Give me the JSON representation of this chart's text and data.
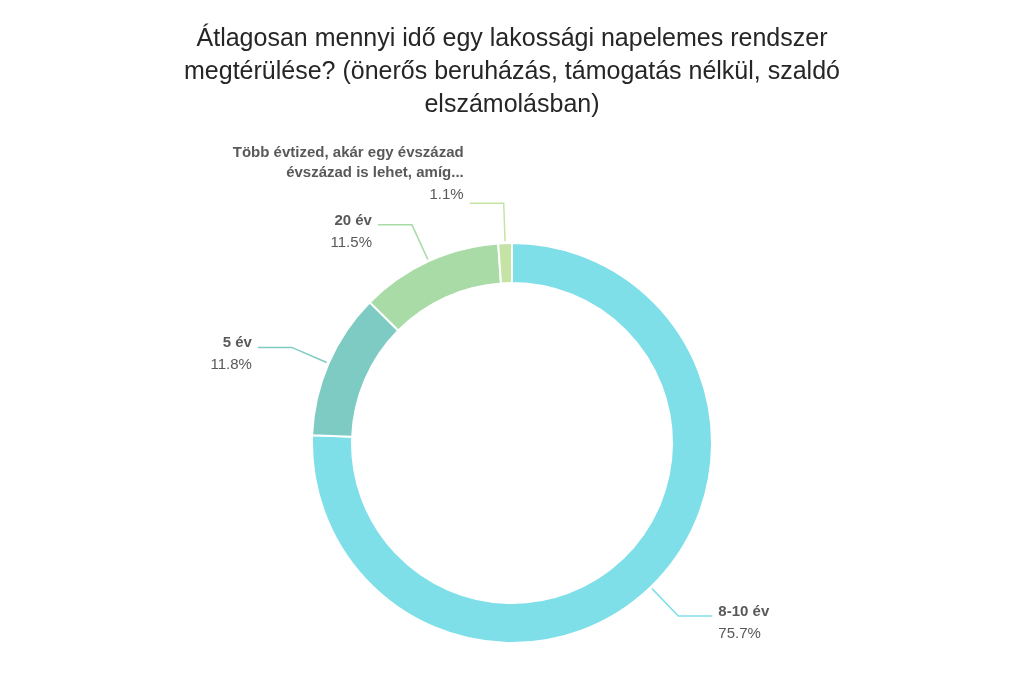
{
  "chart_data": {
    "type": "donut",
    "title": "Átlagosan mennyi idő egy lakossági napelemes rendszer megtérülése? (önerős beruházás, támogatás nélkül, szaldó elszámolásban)",
    "categories": [
      "8-10 év",
      "5 év",
      "20 év",
      "Több évtized, akár egy évszázad évszázad is lehet, amíg..."
    ],
    "values": [
      75.7,
      11.8,
      11.5,
      1.1
    ],
    "colors": [
      "#7fdfe9",
      "#7ecbc4",
      "#a8dba6",
      "#c6e3a6"
    ],
    "value_labels": [
      "75.7%",
      "11.8%",
      "11.5%",
      "1.1%"
    ]
  }
}
